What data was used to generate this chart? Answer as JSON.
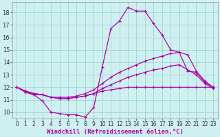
{
  "bg_color": "#cff0f0",
  "line_color": "#aa00aa",
  "grid_color": "#99cccc",
  "xlabel": "Windchill (Refroidissement éolien,°C)",
  "xlabel_fontsize": 6.5,
  "xtick_fontsize": 5.5,
  "ytick_fontsize": 6.0,
  "xlim": [
    -0.5,
    23.5
  ],
  "ylim": [
    9.5,
    18.8
  ],
  "yticks": [
    10,
    11,
    12,
    13,
    14,
    15,
    16,
    17,
    18
  ],
  "xticks": [
    0,
    1,
    2,
    3,
    4,
    5,
    6,
    7,
    8,
    9,
    10,
    11,
    12,
    13,
    14,
    15,
    16,
    17,
    18,
    19,
    20,
    21,
    22,
    23
  ],
  "series": [
    {
      "x": [
        0,
        1,
        2,
        3,
        4,
        5,
        6,
        7,
        8,
        9,
        10,
        11,
        12,
        13,
        14,
        15,
        16,
        17,
        18,
        19,
        20,
        21,
        22,
        23
      ],
      "y": [
        12.0,
        11.7,
        11.4,
        10.9,
        10.0,
        9.9,
        9.8,
        9.8,
        9.6,
        10.4,
        13.6,
        16.7,
        17.3,
        18.4,
        18.1,
        18.1,
        17.1,
        16.2,
        15.0,
        14.8,
        13.3,
        13.2,
        12.4,
        12.0
      ]
    },
    {
      "x": [
        0,
        1,
        2,
        3,
        4,
        5,
        6,
        7,
        8,
        9,
        10,
        11,
        12,
        13,
        14,
        15,
        16,
        17,
        18,
        19,
        20,
        21,
        22,
        23
      ],
      "y": [
        12.0,
        11.7,
        11.5,
        11.4,
        11.2,
        11.2,
        11.2,
        11.3,
        11.5,
        11.8,
        12.3,
        12.8,
        13.2,
        13.5,
        13.8,
        14.1,
        14.3,
        14.5,
        14.7,
        14.8,
        14.6,
        13.3,
        12.5,
        12.0
      ]
    },
    {
      "x": [
        0,
        1,
        2,
        3,
        4,
        5,
        6,
        7,
        8,
        9,
        10,
        11,
        12,
        13,
        14,
        15,
        16,
        17,
        18,
        19,
        20,
        21,
        22,
        23
      ],
      "y": [
        12.0,
        11.7,
        11.5,
        11.4,
        11.2,
        11.1,
        11.1,
        11.2,
        11.3,
        11.5,
        11.9,
        12.2,
        12.5,
        12.8,
        13.0,
        13.2,
        13.4,
        13.5,
        13.7,
        13.8,
        13.4,
        13.0,
        12.3,
        11.9
      ]
    },
    {
      "x": [
        0,
        1,
        2,
        3,
        4,
        5,
        6,
        7,
        8,
        9,
        10,
        11,
        12,
        13,
        14,
        15,
        16,
        17,
        18,
        19,
        20,
        21,
        22,
        23
      ],
      "y": [
        12.0,
        11.6,
        11.4,
        11.4,
        11.2,
        11.1,
        11.1,
        11.2,
        11.3,
        11.5,
        11.7,
        11.8,
        11.9,
        12.0,
        12.0,
        12.0,
        12.0,
        12.0,
        12.0,
        12.0,
        12.0,
        12.0,
        12.0,
        12.0
      ]
    }
  ]
}
